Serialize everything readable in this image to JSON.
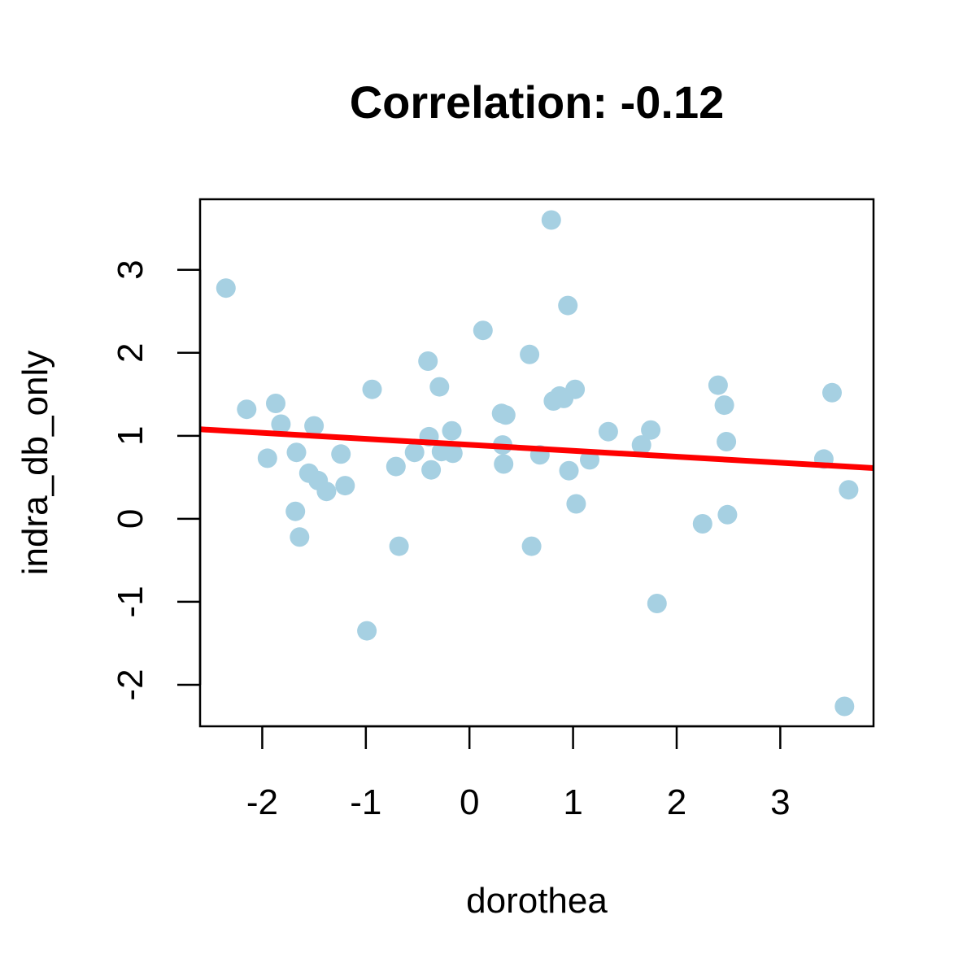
{
  "chart_data": {
    "type": "scatter",
    "title": "Correlation: -0.12",
    "xlabel": "dorothea",
    "ylabel": "indra_db_only",
    "xlim": [
      -2.6,
      3.9
    ],
    "ylim": [
      -2.5,
      3.85
    ],
    "x_ticks": [
      -2,
      -1,
      0,
      1,
      2,
      3
    ],
    "y_ticks": [
      -2,
      -1,
      0,
      1,
      2,
      3
    ],
    "x_tick_labels": [
      "-2",
      "-1",
      "0",
      "1",
      "2",
      "3"
    ],
    "y_tick_labels": [
      "-2",
      "-1",
      "0",
      "1",
      "2",
      "3"
    ],
    "grid": false,
    "point_color": "#a6d0e2",
    "line_color": "#ff0000",
    "trend_line": {
      "slope": -0.072,
      "intercept": 0.892
    },
    "points": [
      {
        "x": -2.35,
        "y": 2.78
      },
      {
        "x": -2.15,
        "y": 1.32
      },
      {
        "x": -1.95,
        "y": 0.73
      },
      {
        "x": -1.87,
        "y": 1.39
      },
      {
        "x": -1.82,
        "y": 1.14
      },
      {
        "x": -1.67,
        "y": 0.8
      },
      {
        "x": -1.68,
        "y": 0.09
      },
      {
        "x": -1.64,
        "y": -0.22
      },
      {
        "x": -1.55,
        "y": 0.55
      },
      {
        "x": -1.5,
        "y": 1.12
      },
      {
        "x": -1.46,
        "y": 0.46
      },
      {
        "x": -1.38,
        "y": 0.33
      },
      {
        "x": -1.24,
        "y": 0.78
      },
      {
        "x": -1.2,
        "y": 0.4
      },
      {
        "x": -0.99,
        "y": -1.35
      },
      {
        "x": -0.94,
        "y": 1.56
      },
      {
        "x": -0.71,
        "y": 0.63
      },
      {
        "x": -0.68,
        "y": -0.33
      },
      {
        "x": -0.53,
        "y": 0.8
      },
      {
        "x": -0.4,
        "y": 1.9
      },
      {
        "x": -0.39,
        "y": 0.99
      },
      {
        "x": -0.37,
        "y": 0.59
      },
      {
        "x": -0.29,
        "y": 1.59
      },
      {
        "x": -0.27,
        "y": 0.81
      },
      {
        "x": -0.17,
        "y": 1.06
      },
      {
        "x": -0.16,
        "y": 0.79
      },
      {
        "x": 0.13,
        "y": 2.27
      },
      {
        "x": 0.31,
        "y": 1.27
      },
      {
        "x": 0.32,
        "y": 0.89
      },
      {
        "x": 0.33,
        "y": 0.66
      },
      {
        "x": 0.35,
        "y": 1.25
      },
      {
        "x": 0.58,
        "y": 1.98
      },
      {
        "x": 0.6,
        "y": -0.33
      },
      {
        "x": 0.68,
        "y": 0.77
      },
      {
        "x": 0.79,
        "y": 3.6
      },
      {
        "x": 0.81,
        "y": 1.42
      },
      {
        "x": 0.87,
        "y": 1.48
      },
      {
        "x": 0.91,
        "y": 1.45
      },
      {
        "x": 0.95,
        "y": 2.57
      },
      {
        "x": 0.96,
        "y": 0.58
      },
      {
        "x": 1.02,
        "y": 1.56
      },
      {
        "x": 1.03,
        "y": 0.18
      },
      {
        "x": 1.16,
        "y": 0.71
      },
      {
        "x": 1.34,
        "y": 1.05
      },
      {
        "x": 1.66,
        "y": 0.89
      },
      {
        "x": 1.75,
        "y": 1.07
      },
      {
        "x": 1.81,
        "y": -1.02
      },
      {
        "x": 2.25,
        "y": -0.06
      },
      {
        "x": 2.4,
        "y": 1.61
      },
      {
        "x": 2.46,
        "y": 1.37
      },
      {
        "x": 2.48,
        "y": 0.93
      },
      {
        "x": 2.49,
        "y": 0.05
      },
      {
        "x": 3.42,
        "y": 0.72
      },
      {
        "x": 3.5,
        "y": 1.52
      },
      {
        "x": 3.62,
        "y": -2.26
      },
      {
        "x": 3.66,
        "y": 0.35
      }
    ]
  }
}
